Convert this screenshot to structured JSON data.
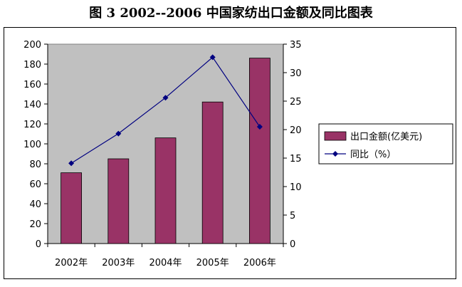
{
  "title": "图 3    2002--2006 中国家纺出口金额及同比图表",
  "colors": {
    "plot_bg": "#c0c0c0",
    "bar": "#993366",
    "line": "#000080"
  },
  "chart_data": {
    "type": "bar",
    "categories": [
      "2002年",
      "2003年",
      "2004年",
      "2005年",
      "2006年"
    ],
    "series": [
      {
        "name": "出口金额(亿美元)",
        "type": "bar",
        "axis": "left",
        "values": [
          71,
          85,
          106,
          142,
          186
        ]
      },
      {
        "name": "同比(%)",
        "type": "line",
        "axis": "right",
        "marker": "diamond",
        "values": [
          14.1,
          19.3,
          25.6,
          32.7,
          20.5
        ]
      }
    ],
    "left_axis": {
      "ylim": [
        0,
        200
      ],
      "ticks": [
        0,
        20,
        40,
        60,
        80,
        100,
        120,
        140,
        160,
        180,
        200
      ]
    },
    "right_axis": {
      "ylim": [
        0,
        35
      ],
      "ticks": [
        0,
        5,
        10,
        15,
        20,
        25,
        30,
        35
      ]
    },
    "legend": {
      "position": "right",
      "entries": [
        "出口金额(亿美元)",
        "同比（%）"
      ]
    }
  }
}
